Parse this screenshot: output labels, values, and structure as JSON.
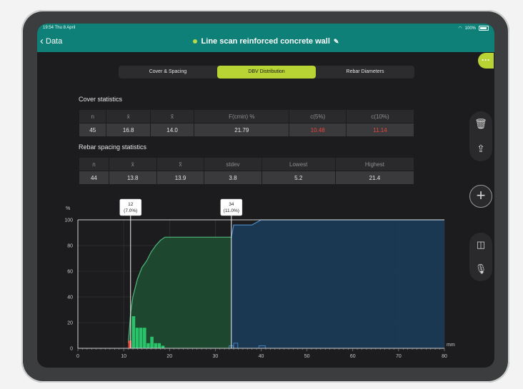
{
  "status_bar": {
    "time": "19:54  Thu 8 April",
    "battery": "100%"
  },
  "nav": {
    "back_label": "Data",
    "title": "Line scan reinforced concrete wall"
  },
  "tabs": [
    {
      "label": "Cover & Spacing",
      "active": false
    },
    {
      "label": "DBV Distribution",
      "active": true
    },
    {
      "label": "Rebar Diameters",
      "active": false
    }
  ],
  "cover_stats": {
    "title": "Cover statistics",
    "headers": [
      "n",
      "x̄",
      "x̃",
      "F(cmin) %",
      "c(5%)",
      "c(10%)"
    ],
    "values": [
      "45",
      "16.8",
      "14.0",
      "21.79",
      "10.48",
      "11.14"
    ]
  },
  "spacing_stats": {
    "title": "Rebar spacing statistics",
    "headers": [
      "n",
      "x̄",
      "x̃",
      "stdev",
      "Lowest",
      "Highest"
    ],
    "values": [
      "44",
      "13.8",
      "13.9",
      "3.8",
      "5.2",
      "21.4"
    ]
  },
  "colors": {
    "accent": "#b7d334",
    "nav": "#0e8077",
    "warning": "#e8453c",
    "green_fill": "#1f4a32",
    "blue_fill": "#1b3a55",
    "hist_green": "#29c46a",
    "hist_red": "#e8453c"
  },
  "chart_data": {
    "type": "area",
    "ylabel": "%",
    "xlabel": "mm",
    "xlim": [
      0,
      80
    ],
    "ylim": [
      0,
      100
    ],
    "x_ticks": [
      0,
      10,
      20,
      30,
      40,
      50,
      60,
      70,
      80
    ],
    "y_ticks": [
      0,
      20,
      40,
      60,
      80,
      100
    ],
    "cumulative_cover": {
      "x": [
        11,
        11.5,
        12,
        13,
        14,
        15,
        16,
        17,
        18,
        19,
        20,
        33.5
      ],
      "y": [
        4,
        27,
        40,
        54,
        63,
        68,
        75,
        80,
        84,
        86.5,
        86.5,
        86.5
      ]
    },
    "cumulative_spacing": {
      "x": [
        33.5,
        34,
        35,
        38,
        39,
        40,
        80
      ],
      "y": [
        86.5,
        96,
        96,
        96,
        98,
        100,
        100
      ]
    },
    "histogram_cover": [
      {
        "x0": 11,
        "x1": 11.8,
        "y": 6,
        "color": "red"
      },
      {
        "x0": 11.8,
        "x1": 12.6,
        "y": 25,
        "color": "green"
      },
      {
        "x0": 12.6,
        "x1": 13.4,
        "y": 16,
        "color": "green"
      },
      {
        "x0": 13.4,
        "x1": 14.2,
        "y": 16,
        "color": "green"
      },
      {
        "x0": 14.2,
        "x1": 15.0,
        "y": 16,
        "color": "green"
      },
      {
        "x0": 15.0,
        "x1": 15.8,
        "y": 4,
        "color": "green"
      },
      {
        "x0": 15.8,
        "x1": 16.6,
        "y": 9,
        "color": "green"
      },
      {
        "x0": 16.6,
        "x1": 17.4,
        "y": 4,
        "color": "green"
      },
      {
        "x0": 17.4,
        "x1": 18.2,
        "y": 4,
        "color": "green"
      },
      {
        "x0": 18.2,
        "x1": 19.0,
        "y": 2,
        "color": "green"
      }
    ],
    "histogram_spacing": [
      {
        "x0": 33.0,
        "x1": 34.0,
        "y": 2
      },
      {
        "x0": 34.0,
        "x1": 35.0,
        "y": 4
      },
      {
        "x0": 39.5,
        "x1": 41.0,
        "y": 2
      }
    ],
    "markers": [
      {
        "x": 11.5,
        "value": "12",
        "pct": "(7.0%)"
      },
      {
        "x": 33.5,
        "value": "34",
        "pct": "(11.0%)"
      }
    ]
  }
}
